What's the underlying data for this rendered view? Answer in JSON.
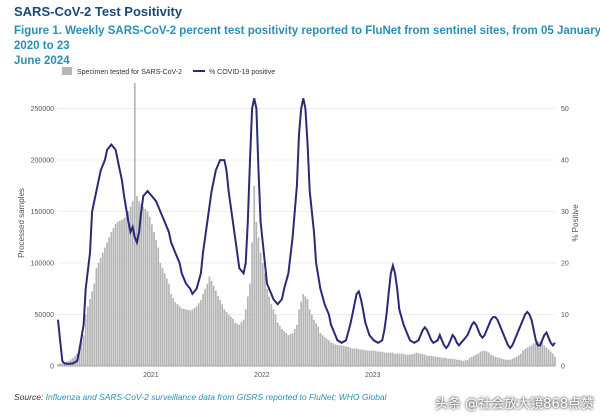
{
  "heading": "SARS-CoV-2 Test Positivity",
  "figure_title_line1": "Figure 1. Weekly SARS-CoV-2 percent test positivity reported to FluNet from sentinel sites, from 05 January 2020 to 23",
  "figure_title_line2": "June 2024",
  "source_label": "Source:",
  "source_text": "Influenza and SARS-CoV-2 surveillance data from GISRS reported to FluNet; WHO Global",
  "watermark": "头条 @社会放大镜868点赞",
  "colors": {
    "bars": "#b5b5b5",
    "line": "#2a2a7a",
    "heading": "#1a4a7a",
    "title": "#2a8fb5"
  },
  "chart_data": {
    "type": "bar",
    "legend": {
      "placement": "top-left",
      "bars_label": "Specimen tested for SARS-CoV-2",
      "line_label": "% COVID-19 positive"
    },
    "ylabel_left": "Processed samples",
    "ylabel_right": "% Positive",
    "y_left_ticks": [
      "0",
      "50000",
      "100000",
      "150000",
      "200000",
      "250000"
    ],
    "y_right_ticks": [
      "0",
      "10",
      "20",
      "30",
      "40",
      "50"
    ],
    "ylim_left": [
      0,
      270000
    ],
    "ylim_right": [
      0,
      54
    ],
    "x_ticks": [
      "2021",
      "2022",
      "2023"
    ],
    "x_week_range": [
      0,
      233
    ],
    "grid": true,
    "samples_by_week": [
      [
        0,
        2000
      ],
      [
        2,
        3000
      ],
      [
        4,
        4000
      ],
      [
        5,
        5000
      ],
      [
        7,
        8000
      ],
      [
        9,
        12000
      ],
      [
        10,
        18000
      ],
      [
        12,
        30000
      ],
      [
        13,
        50000
      ],
      [
        15,
        65000
      ],
      [
        17,
        80000
      ],
      [
        18,
        95000
      ],
      [
        20,
        105000
      ],
      [
        22,
        115000
      ],
      [
        23,
        120000
      ],
      [
        25,
        130000
      ],
      [
        27,
        138000
      ],
      [
        28,
        140000
      ],
      [
        30,
        142000
      ],
      [
        32,
        145000
      ],
      [
        33,
        150000
      ],
      [
        35,
        160000
      ],
      [
        36,
        275000
      ],
      [
        37,
        165000
      ],
      [
        38,
        160000
      ],
      [
        40,
        155000
      ],
      [
        42,
        150000
      ],
      [
        43,
        145000
      ],
      [
        45,
        130000
      ],
      [
        47,
        115000
      ],
      [
        48,
        100000
      ],
      [
        50,
        90000
      ],
      [
        52,
        80000
      ],
      [
        53,
        70000
      ],
      [
        55,
        62000
      ],
      [
        57,
        58000
      ],
      [
        58,
        56000
      ],
      [
        60,
        55000
      ],
      [
        62,
        54000
      ],
      [
        63,
        55000
      ],
      [
        65,
        58000
      ],
      [
        67,
        64000
      ],
      [
        68,
        70000
      ],
      [
        70,
        80000
      ],
      [
        71,
        87000
      ],
      [
        73,
        78000
      ],
      [
        75,
        68000
      ],
      [
        77,
        60000
      ],
      [
        78,
        55000
      ],
      [
        80,
        50000
      ],
      [
        82,
        46000
      ],
      [
        83,
        42000
      ],
      [
        85,
        40000
      ],
      [
        87,
        45000
      ],
      [
        88,
        55000
      ],
      [
        90,
        80000
      ],
      [
        91,
        120000
      ],
      [
        92,
        175000
      ],
      [
        93,
        140000
      ],
      [
        95,
        110000
      ],
      [
        97,
        90000
      ],
      [
        98,
        75000
      ],
      [
        100,
        60000
      ],
      [
        102,
        50000
      ],
      [
        103,
        42000
      ],
      [
        105,
        36000
      ],
      [
        107,
        32000
      ],
      [
        108,
        30000
      ],
      [
        110,
        32000
      ],
      [
        112,
        40000
      ],
      [
        113,
        55000
      ],
      [
        115,
        70000
      ],
      [
        117,
        65000
      ],
      [
        118,
        55000
      ],
      [
        120,
        45000
      ],
      [
        122,
        38000
      ],
      [
        123,
        32000
      ],
      [
        125,
        28000
      ],
      [
        127,
        25000
      ],
      [
        128,
        23000
      ],
      [
        130,
        21000
      ],
      [
        132,
        20000
      ],
      [
        133,
        20000
      ],
      [
        135,
        19000
      ],
      [
        137,
        18000
      ],
      [
        138,
        17000
      ],
      [
        140,
        17000
      ],
      [
        142,
        16000
      ],
      [
        143,
        16000
      ],
      [
        145,
        15000
      ],
      [
        147,
        15000
      ],
      [
        148,
        15000
      ],
      [
        150,
        14000
      ],
      [
        152,
        14000
      ],
      [
        153,
        13000
      ],
      [
        155,
        13000
      ],
      [
        157,
        13000
      ],
      [
        158,
        12000
      ],
      [
        160,
        12000
      ],
      [
        162,
        12000
      ],
      [
        163,
        11000
      ],
      [
        165,
        11000
      ],
      [
        167,
        12000
      ],
      [
        168,
        13000
      ],
      [
        170,
        12000
      ],
      [
        172,
        11000
      ],
      [
        173,
        10000
      ],
      [
        175,
        10000
      ],
      [
        177,
        9000
      ],
      [
        178,
        9000
      ],
      [
        180,
        8000
      ],
      [
        182,
        8000
      ],
      [
        183,
        7000
      ],
      [
        185,
        7000
      ],
      [
        187,
        6000
      ],
      [
        188,
        6000
      ],
      [
        190,
        5000
      ],
      [
        192,
        6000
      ],
      [
        193,
        8000
      ],
      [
        195,
        10000
      ],
      [
        197,
        12000
      ],
      [
        198,
        14000
      ],
      [
        200,
        15000
      ],
      [
        202,
        13000
      ],
      [
        203,
        11000
      ],
      [
        205,
        9000
      ],
      [
        207,
        8000
      ],
      [
        208,
        7000
      ],
      [
        210,
        6000
      ],
      [
        212,
        6000
      ],
      [
        213,
        7000
      ],
      [
        215,
        9000
      ],
      [
        217,
        12000
      ],
      [
        218,
        15000
      ],
      [
        220,
        18000
      ],
      [
        222,
        20000
      ],
      [
        223,
        22000
      ],
      [
        225,
        24000
      ],
      [
        227,
        23000
      ],
      [
        228,
        20000
      ],
      [
        230,
        16000
      ],
      [
        232,
        12000
      ],
      [
        233,
        9000
      ]
    ],
    "positivity_by_week": [
      [
        0,
        9
      ],
      [
        1,
        5
      ],
      [
        2,
        1
      ],
      [
        3,
        0.5
      ],
      [
        5,
        0.4
      ],
      [
        7,
        0.5
      ],
      [
        9,
        1
      ],
      [
        10,
        3
      ],
      [
        12,
        8
      ],
      [
        13,
        15
      ],
      [
        15,
        22
      ],
      [
        16,
        30
      ],
      [
        18,
        34
      ],
      [
        20,
        38
      ],
      [
        22,
        40
      ],
      [
        23,
        42
      ],
      [
        25,
        43
      ],
      [
        27,
        42
      ],
      [
        28,
        40
      ],
      [
        30,
        36
      ],
      [
        31,
        33
      ],
      [
        33,
        28
      ],
      [
        34,
        26
      ],
      [
        35,
        27
      ],
      [
        36,
        25
      ],
      [
        37,
        24
      ],
      [
        38,
        26
      ],
      [
        39,
        30
      ],
      [
        40,
        33
      ],
      [
        42,
        34
      ],
      [
        44,
        33
      ],
      [
        46,
        32
      ],
      [
        48,
        30
      ],
      [
        50,
        28
      ],
      [
        52,
        26
      ],
      [
        53,
        24
      ],
      [
        55,
        22
      ],
      [
        57,
        20
      ],
      [
        58,
        18
      ],
      [
        60,
        16
      ],
      [
        62,
        15
      ],
      [
        63,
        14
      ],
      [
        65,
        15
      ],
      [
        67,
        18
      ],
      [
        68,
        22
      ],
      [
        70,
        28
      ],
      [
        72,
        34
      ],
      [
        74,
        38
      ],
      [
        76,
        40
      ],
      [
        78,
        40
      ],
      [
        79,
        38
      ],
      [
        80,
        34
      ],
      [
        82,
        28
      ],
      [
        84,
        22
      ],
      [
        85,
        19
      ],
      [
        87,
        18
      ],
      [
        88,
        20
      ],
      [
        89,
        28
      ],
      [
        90,
        40
      ],
      [
        91,
        50
      ],
      [
        92,
        52
      ],
      [
        93,
        50
      ],
      [
        94,
        38
      ],
      [
        95,
        28
      ],
      [
        97,
        20
      ],
      [
        98,
        16
      ],
      [
        100,
        14
      ],
      [
        101,
        13
      ],
      [
        103,
        12
      ],
      [
        105,
        13
      ],
      [
        106,
        15
      ],
      [
        108,
        18
      ],
      [
        110,
        25
      ],
      [
        112,
        35
      ],
      [
        113,
        45
      ],
      [
        114,
        50
      ],
      [
        115,
        52
      ],
      [
        116,
        50
      ],
      [
        117,
        43
      ],
      [
        118,
        34
      ],
      [
        120,
        26
      ],
      [
        121,
        20
      ],
      [
        123,
        15
      ],
      [
        125,
        12
      ],
      [
        127,
        10
      ],
      [
        128,
        8
      ],
      [
        130,
        6
      ],
      [
        131,
        5
      ],
      [
        133,
        4.5
      ],
      [
        135,
        5
      ],
      [
        136,
        6.5
      ],
      [
        137,
        8
      ],
      [
        138,
        10
      ],
      [
        139,
        12
      ],
      [
        140,
        14
      ],
      [
        141,
        14.5
      ],
      [
        142,
        13
      ],
      [
        143,
        11
      ],
      [
        144,
        8.5
      ],
      [
        146,
        6
      ],
      [
        148,
        5
      ],
      [
        150,
        4.5
      ],
      [
        152,
        5
      ],
      [
        153,
        7
      ],
      [
        154,
        10
      ],
      [
        155,
        14
      ],
      [
        156,
        18
      ],
      [
        157,
        19.5
      ],
      [
        158,
        18
      ],
      [
        159,
        15
      ],
      [
        160,
        11
      ],
      [
        162,
        8
      ],
      [
        164,
        6
      ],
      [
        165,
        5
      ],
      [
        167,
        4.5
      ],
      [
        169,
        5
      ],
      [
        170,
        6
      ],
      [
        171,
        7
      ],
      [
        172,
        7.5
      ],
      [
        173,
        7
      ],
      [
        174,
        6
      ],
      [
        175,
        5
      ],
      [
        176,
        4.5
      ],
      [
        178,
        5
      ],
      [
        179,
        6
      ],
      [
        180,
        5
      ],
      [
        181,
        4
      ],
      [
        182,
        3.5
      ],
      [
        183,
        4
      ],
      [
        184,
        5
      ],
      [
        185,
        6
      ],
      [
        186,
        5.5
      ],
      [
        187,
        4.5
      ],
      [
        188,
        4
      ],
      [
        189,
        4.5
      ],
      [
        190,
        5
      ],
      [
        191,
        5.5
      ],
      [
        192,
        6
      ],
      [
        193,
        7
      ],
      [
        194,
        8
      ],
      [
        195,
        8.5
      ],
      [
        196,
        8
      ],
      [
        197,
        7
      ],
      [
        198,
        6
      ],
      [
        199,
        5.5
      ],
      [
        200,
        6
      ],
      [
        201,
        7
      ],
      [
        202,
        8
      ],
      [
        203,
        9
      ],
      [
        204,
        9.5
      ],
      [
        205,
        9.5
      ],
      [
        206,
        9
      ],
      [
        207,
        8
      ],
      [
        208,
        7
      ],
      [
        209,
        6
      ],
      [
        210,
        5
      ],
      [
        211,
        4
      ],
      [
        212,
        3.5
      ],
      [
        213,
        4
      ],
      [
        214,
        5
      ],
      [
        215,
        6
      ],
      [
        216,
        7
      ],
      [
        217,
        8
      ],
      [
        218,
        9
      ],
      [
        219,
        10
      ],
      [
        220,
        10.5
      ],
      [
        221,
        10
      ],
      [
        222,
        9
      ],
      [
        223,
        7
      ],
      [
        224,
        5
      ],
      [
        225,
        4
      ],
      [
        226,
        4
      ],
      [
        227,
        5
      ],
      [
        228,
        6
      ],
      [
        229,
        6.5
      ],
      [
        230,
        5.5
      ],
      [
        231,
        4.5
      ],
      [
        232,
        4
      ],
      [
        233,
        4.5
      ]
    ]
  }
}
